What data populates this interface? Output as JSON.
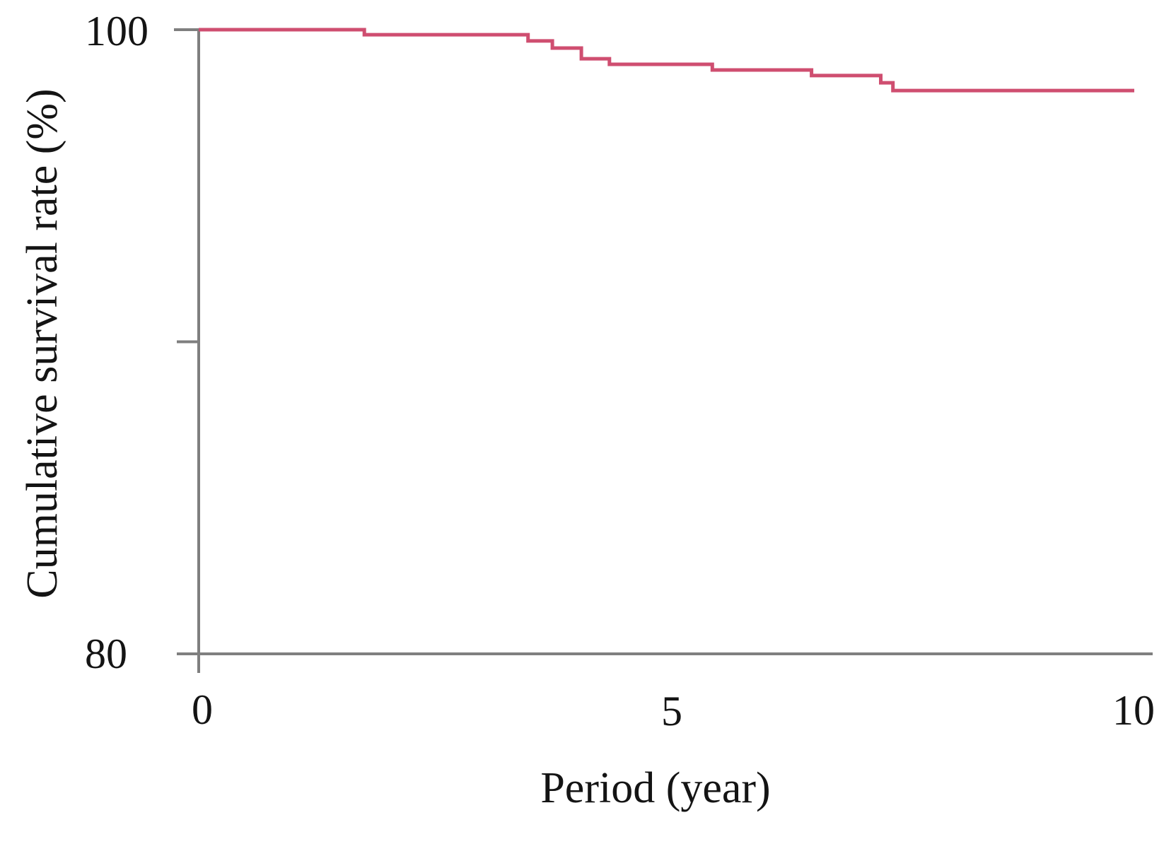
{
  "figure": {
    "background": "#ffffff",
    "axis_color": "#7f7f7f",
    "text_color": "#141414"
  },
  "chart_data": {
    "type": "line",
    "subtype": "kaplan-meier-step-curve",
    "title": "",
    "xlabel": "Period (year)",
    "ylabel": "Cumulative survival rate (%)",
    "xlim": [
      0,
      10
    ],
    "ylim": [
      80,
      100
    ],
    "grid": false,
    "legend": "none",
    "x_ticks": [
      {
        "value": 0,
        "label": "0"
      },
      {
        "value": 5,
        "label": "5"
      },
      {
        "value": 10,
        "label": "10"
      }
    ],
    "y_ticks": [
      {
        "value": 100,
        "label": "100"
      },
      {
        "value": 90,
        "label": ""
      },
      {
        "value": 80,
        "label": "80"
      }
    ],
    "series": [
      {
        "name": "Cumulative survival rate",
        "color": "#cf4e70",
        "start": {
          "year": 0,
          "survival": 100.0
        },
        "end_year": 10,
        "steps": [
          {
            "year": 1.77,
            "survival": 99.84
          },
          {
            "year": 3.52,
            "survival": 99.64
          },
          {
            "year": 3.78,
            "survival": 99.41
          },
          {
            "year": 4.09,
            "survival": 99.07
          },
          {
            "year": 4.39,
            "survival": 98.89
          },
          {
            "year": 5.49,
            "survival": 98.71
          },
          {
            "year": 6.55,
            "survival": 98.53
          },
          {
            "year": 7.29,
            "survival": 98.3
          },
          {
            "year": 7.42,
            "survival": 98.05
          }
        ]
      }
    ]
  }
}
